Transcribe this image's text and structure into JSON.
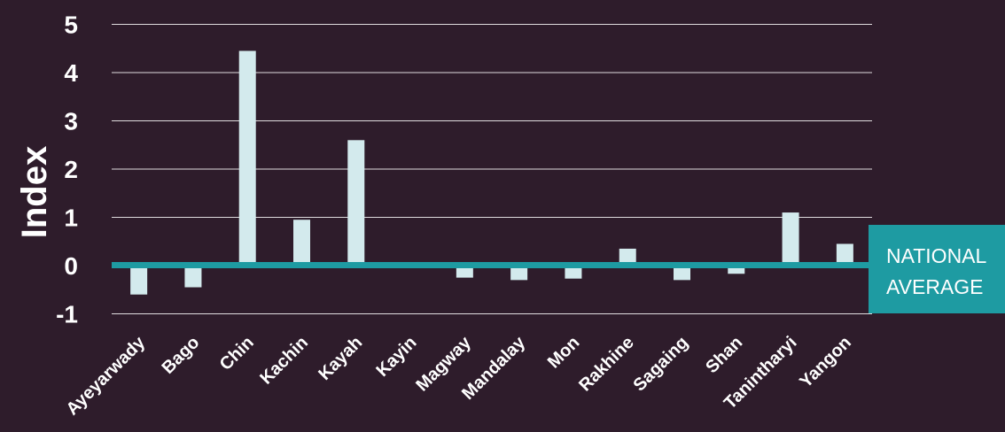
{
  "chart_data": {
    "type": "bar",
    "categories": [
      "Ayeyarwady",
      "Bago",
      "Chin",
      "Kachin",
      "Kayah",
      "Kayin",
      "Magway",
      "Mandalay",
      "Mon",
      "Rakhine",
      "Sagaing",
      "Shan",
      "Tanintharyi",
      "Yangon"
    ],
    "values": [
      -0.6,
      -0.45,
      4.45,
      0.95,
      2.6,
      0.0,
      -0.25,
      -0.3,
      -0.27,
      0.35,
      -0.3,
      -0.17,
      1.1,
      0.45
    ],
    "title": "",
    "xlabel": "",
    "ylabel": "Index",
    "ylim": [
      -1,
      5
    ],
    "yticks": [
      "-1",
      "0",
      "1",
      "2",
      "3",
      "4",
      "5"
    ],
    "grid": true,
    "reference_line": {
      "value": 0,
      "label_line1": "NATIONAL",
      "label_line2": "AVERAGE"
    }
  },
  "colors": {
    "background": "#2e1c2b",
    "bar": "#d3eaed",
    "reference_line": "#1e9ba2",
    "grid": "#ffffff",
    "text": "#ffffff"
  }
}
